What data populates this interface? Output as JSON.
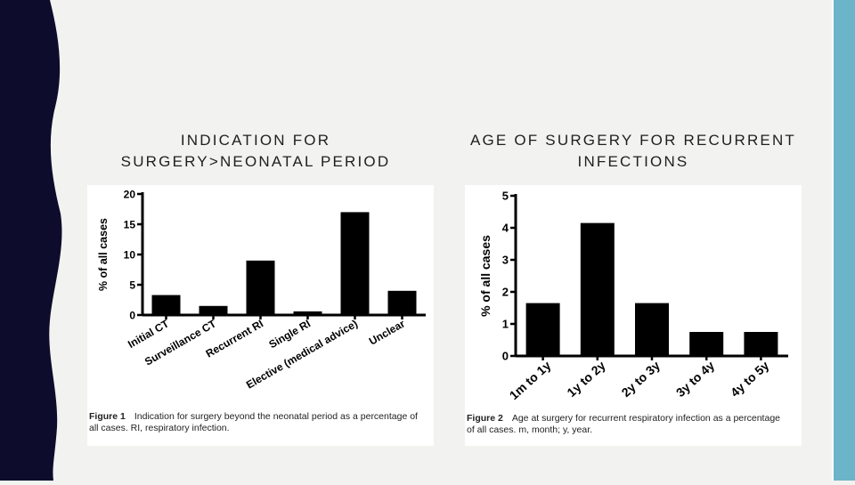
{
  "slide": {
    "left_heading": "INDICATION FOR SURGERY>NEONATAL PERIOD",
    "right_heading": "AGE OF SURGERY FOR RECURRENT INFECTIONS",
    "accent_color": "#6cb4c8",
    "band_color": "#0d0c2c"
  },
  "chart_data": [
    {
      "type": "bar",
      "categories": [
        "Initial CT",
        "Surveillance CT",
        "Recurrent RI",
        "Single RI",
        "Elective (medical advice)",
        "Unclear"
      ],
      "values": [
        3.3,
        1.5,
        9,
        0.6,
        17,
        4
      ],
      "ylabel": "% of all cases",
      "ylim": [
        0,
        20
      ],
      "yticks": [
        0,
        5,
        10,
        15,
        20
      ],
      "bar_color": "#000000",
      "caption_label": "Figure 1",
      "caption_text": "Indication for surgery beyond the neonatal period as a percentage of all cases. RI, respiratory infection."
    },
    {
      "type": "bar",
      "categories": [
        "1m to 1y",
        "1y to 2y",
        "2y to 3y",
        "3y to 4y",
        "4y to 5y"
      ],
      "values": [
        1.65,
        4.15,
        1.65,
        0.75,
        0.75
      ],
      "ylabel": "% of all cases",
      "ylim": [
        0,
        5
      ],
      "yticks": [
        0,
        1,
        2,
        3,
        4,
        5
      ],
      "bar_color": "#000000",
      "caption_label": "Figure 2",
      "caption_text": "Age at surgery for recurrent respiratory infection as a percentage of all cases. m, month; y, year."
    }
  ]
}
